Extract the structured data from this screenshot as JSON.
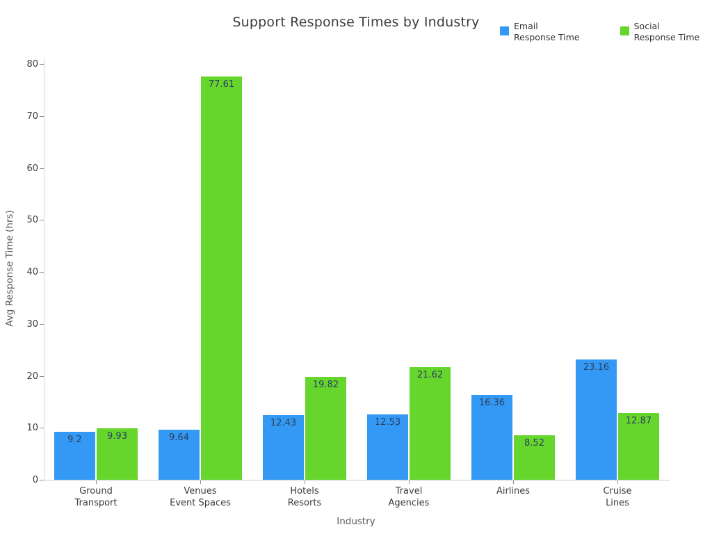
{
  "chart_data": {
    "type": "bar",
    "title": "Support Response Times by Industry",
    "xlabel": "Industry",
    "ylabel": "Avg Response Time (hrs)",
    "categories": [
      "Ground\nTransport",
      "Venues\nEvent Spaces",
      "Hotels\nResorts",
      "Travel\nAgencies",
      "Airlines",
      "Cruise\nLines"
    ],
    "series": [
      {
        "name": "Email Response Time",
        "color": "#3499f4",
        "values": [
          9.2,
          9.64,
          12.43,
          12.53,
          16.36,
          23.16
        ]
      },
      {
        "name": "Social Response Time",
        "color": "#66d62d",
        "values": [
          9.93,
          77.61,
          19.82,
          21.62,
          8.52,
          12.87
        ]
      }
    ],
    "value_labels": [
      [
        "9.2",
        "9.64",
        "12.43",
        "12.53",
        "16.36",
        "23.16"
      ],
      [
        "9.93",
        "77.61",
        "19.82",
        "21.62",
        "8.52",
        "12.87"
      ]
    ],
    "ylim": [
      0,
      80
    ],
    "ytick_step": 10,
    "ytick_labels": [
      "0",
      "10",
      "20",
      "30",
      "40",
      "50",
      "60",
      "70",
      "80"
    ],
    "grid": false,
    "legend_position": "top-right",
    "legend": {
      "items": [
        {
          "label": "Email\nResponse Time",
          "color": "#3499f4"
        },
        {
          "label": "Social\nResponse Time",
          "color": "#66d62d"
        }
      ]
    }
  }
}
